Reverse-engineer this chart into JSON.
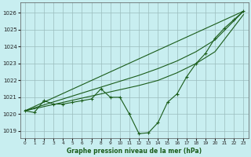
{
  "title": "Graphe pression niveau de la mer (hPa)",
  "bg_color": "#c8eef0",
  "grid_color": "#9bbcbd",
  "line_color": "#1a5c1a",
  "xlim": [
    -0.5,
    23.5
  ],
  "ylim": [
    1018.6,
    1026.6
  ],
  "yticks": [
    1019,
    1020,
    1021,
    1022,
    1023,
    1024,
    1025,
    1026
  ],
  "xticks": [
    0,
    1,
    2,
    3,
    4,
    5,
    6,
    7,
    8,
    9,
    10,
    11,
    12,
    13,
    14,
    15,
    16,
    17,
    18,
    19,
    20,
    21,
    22,
    23
  ],
  "series_main": {
    "x": [
      0,
      1,
      2,
      3,
      4,
      5,
      6,
      7,
      8,
      9,
      10,
      11,
      12,
      13,
      14,
      15,
      16,
      17,
      18,
      19,
      20,
      21,
      22,
      23
    ],
    "y": [
      1020.2,
      1020.1,
      1020.8,
      1020.6,
      1020.6,
      1020.7,
      1020.8,
      1020.9,
      1021.5,
      1021.0,
      1021.0,
      1020.0,
      1018.85,
      1018.9,
      1019.5,
      1020.7,
      1021.2,
      1022.2,
      1023.0,
      1023.6,
      1024.5,
      1025.1,
      1025.6,
      1026.1
    ]
  },
  "series_smooth1": {
    "x": [
      0,
      23
    ],
    "y": [
      1020.2,
      1026.1
    ]
  },
  "series_smooth2": {
    "x": [
      0,
      2,
      4,
      6,
      8,
      10,
      12,
      14,
      16,
      18,
      20,
      23
    ],
    "y": [
      1020.2,
      1020.55,
      1020.9,
      1021.25,
      1021.6,
      1021.95,
      1022.3,
      1022.7,
      1023.15,
      1023.7,
      1024.4,
      1026.1
    ]
  },
  "series_smooth3": {
    "x": [
      0,
      2,
      4,
      6,
      8,
      10,
      12,
      14,
      16,
      18,
      20,
      23
    ],
    "y": [
      1020.2,
      1020.45,
      1020.7,
      1020.95,
      1021.2,
      1021.45,
      1021.7,
      1022.0,
      1022.45,
      1023.0,
      1023.7,
      1025.9
    ]
  }
}
